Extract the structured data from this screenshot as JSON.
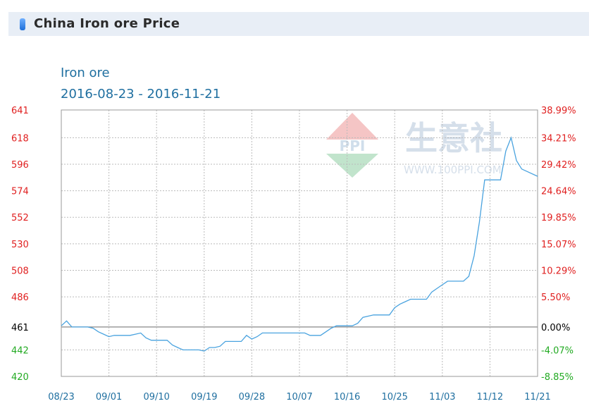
{
  "header": {
    "title": "China Iron ore Price"
  },
  "colors": {
    "line": "#4aa3df",
    "left_axis_up": "#e02020",
    "left_axis_down": "#22aa22",
    "base_label": "#000000",
    "title": "#1f6fa0",
    "grid": "#bbbbbb"
  },
  "watermark": {
    "logo_text": "PPI",
    "chinese_text": "生意社",
    "url_text": "WWW.100PPI.COM"
  },
  "chart_data": {
    "type": "line",
    "title": "Iron ore",
    "subtitle": "2016-08-23 - 2016-11-21",
    "x_labels": [
      "08/23",
      "09/01",
      "09/10",
      "09/19",
      "09/28",
      "10/07",
      "10/16",
      "10/25",
      "11/03",
      "11/12",
      "11/21"
    ],
    "x_start": "2016-08-23",
    "x_end": "2016-11-21",
    "y_left_ticks": [
      "641",
      "618",
      "596",
      "574",
      "552",
      "530",
      "508",
      "486",
      "461",
      "442",
      "420"
    ],
    "y_right_ticks": [
      "38.99%",
      "34.21%",
      "29.42%",
      "24.64%",
      "19.85%",
      "15.07%",
      "10.29%",
      "5.50%",
      "0.00%",
      "-4.07%",
      "-8.85%"
    ],
    "base_value": 461,
    "ylim": [
      420,
      641
    ],
    "grid": true,
    "legend": "none",
    "series": [
      {
        "points": [
          [
            "2016-08-23",
            462
          ],
          [
            "2016-08-24",
            466
          ],
          [
            "2016-08-25",
            461
          ],
          [
            "2016-08-28",
            461
          ],
          [
            "2016-08-29",
            460
          ],
          [
            "2016-08-30",
            457
          ],
          [
            "2016-08-31",
            455
          ],
          [
            "2016-09-01",
            453
          ],
          [
            "2016-09-02",
            454
          ],
          [
            "2016-09-05",
            454
          ],
          [
            "2016-09-06",
            455
          ],
          [
            "2016-09-07",
            456
          ],
          [
            "2016-09-08",
            452
          ],
          [
            "2016-09-09",
            450
          ],
          [
            "2016-09-12",
            450
          ],
          [
            "2016-09-13",
            446
          ],
          [
            "2016-09-14",
            444
          ],
          [
            "2016-09-15",
            442
          ],
          [
            "2016-09-18",
            442
          ],
          [
            "2016-09-19",
            441
          ],
          [
            "2016-09-20",
            444
          ],
          [
            "2016-09-21",
            444
          ],
          [
            "2016-09-22",
            445
          ],
          [
            "2016-09-23",
            449
          ],
          [
            "2016-09-26",
            449
          ],
          [
            "2016-09-27",
            454
          ],
          [
            "2016-09-28",
            451
          ],
          [
            "2016-09-29",
            453
          ],
          [
            "2016-09-30",
            456
          ],
          [
            "2016-10-08",
            456
          ],
          [
            "2016-10-09",
            454
          ],
          [
            "2016-10-11",
            454
          ],
          [
            "2016-10-12",
            457
          ],
          [
            "2016-10-13",
            460
          ],
          [
            "2016-10-14",
            462
          ],
          [
            "2016-10-17",
            462
          ],
          [
            "2016-10-18",
            464
          ],
          [
            "2016-10-19",
            469
          ],
          [
            "2016-10-20",
            470
          ],
          [
            "2016-10-21",
            471
          ],
          [
            "2016-10-24",
            471
          ],
          [
            "2016-10-25",
            477
          ],
          [
            "2016-10-26",
            480
          ],
          [
            "2016-10-27",
            482
          ],
          [
            "2016-10-28",
            484
          ],
          [
            "2016-10-31",
            484
          ],
          [
            "2016-11-01",
            490
          ],
          [
            "2016-11-02",
            493
          ],
          [
            "2016-11-03",
            496
          ],
          [
            "2016-11-04",
            499
          ],
          [
            "2016-11-07",
            499
          ],
          [
            "2016-11-08",
            503
          ],
          [
            "2016-11-09",
            520
          ],
          [
            "2016-11-10",
            548
          ],
          [
            "2016-11-11",
            583
          ],
          [
            "2016-11-14",
            583
          ],
          [
            "2016-11-15",
            607
          ],
          [
            "2016-11-16",
            618
          ],
          [
            "2016-11-17",
            599
          ],
          [
            "2016-11-18",
            592
          ],
          [
            "2016-11-21",
            586
          ]
        ]
      }
    ]
  }
}
